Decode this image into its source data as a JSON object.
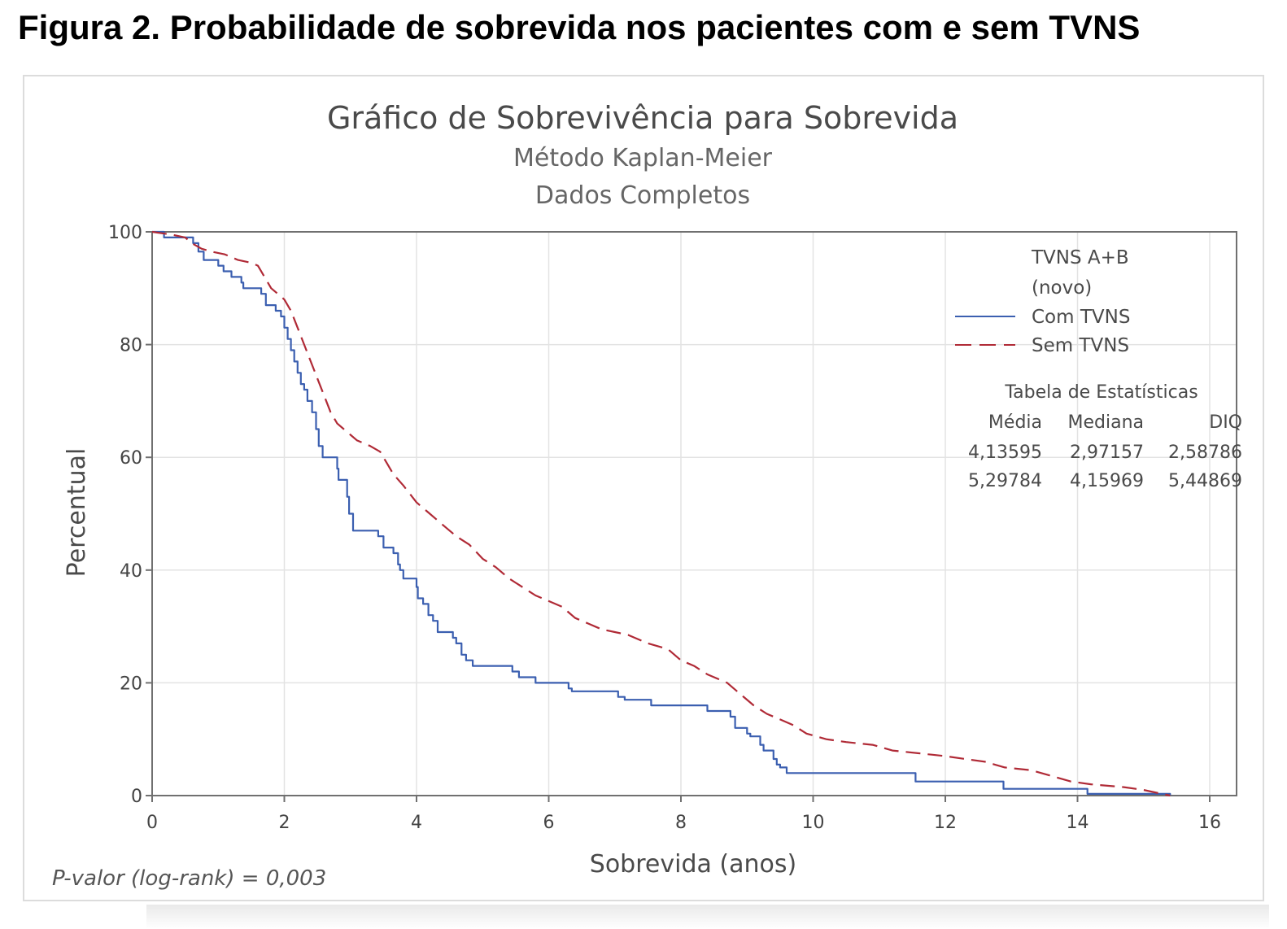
{
  "figure_title": "Figura 2. Probabilidade de sobrevida nos pacientes com e sem TVNS",
  "colors": {
    "com_tvns": "#3b5fb0",
    "sem_tvns": "#b02a36",
    "grid": "#e3e3e3",
    "axis": "#707070",
    "text": "#444444"
  },
  "chart_data": {
    "type": "line",
    "subtype": "kaplan-meier step",
    "title": "Gráfico de Sobrevivência para Sobrevida",
    "subtitle_1": "Método Kaplan-Meier",
    "subtitle_2": "Dados Completos",
    "xlabel": "Sobrevida (anos)",
    "ylabel": "Percentual",
    "xlim": [
      0,
      16.4
    ],
    "ylim": [
      0,
      100
    ],
    "x_ticks": [
      "0",
      "2",
      "4",
      "6",
      "8",
      "10",
      "12",
      "14",
      "16"
    ],
    "y_ticks": [
      "0",
      "20",
      "40",
      "60",
      "80",
      "100"
    ],
    "grid": true,
    "legend_position": "top-right",
    "legend_title_1": "TVNS A+B",
    "legend_title_2": "(novo)",
    "stats_table_title": "Tabela de Estatísticas",
    "stats_columns": [
      "Média",
      "Mediana",
      "DIQ"
    ],
    "stats_rows": [
      [
        "4,13595",
        "2,97157",
        "2,58786"
      ],
      [
        "5,29784",
        "4,15969",
        "5,44869"
      ]
    ],
    "annotation": "P-valor (log-rank) = 0,003",
    "series": [
      {
        "name": "Com TVNS",
        "style": "solid",
        "points": [
          [
            0,
            100
          ],
          [
            0.18,
            99
          ],
          [
            0.55,
            99
          ],
          [
            0.62,
            98
          ],
          [
            0.7,
            96.5
          ],
          [
            0.78,
            95
          ],
          [
            1.0,
            94
          ],
          [
            1.08,
            93
          ],
          [
            1.2,
            92
          ],
          [
            1.35,
            91
          ],
          [
            1.38,
            90
          ],
          [
            1.65,
            89
          ],
          [
            1.72,
            87
          ],
          [
            1.87,
            86
          ],
          [
            1.95,
            85
          ],
          [
            2.0,
            83
          ],
          [
            2.05,
            81
          ],
          [
            2.1,
            79
          ],
          [
            2.15,
            77
          ],
          [
            2.2,
            75
          ],
          [
            2.25,
            73
          ],
          [
            2.3,
            72
          ],
          [
            2.35,
            70
          ],
          [
            2.42,
            68
          ],
          [
            2.48,
            65
          ],
          [
            2.52,
            62
          ],
          [
            2.58,
            60
          ],
          [
            2.8,
            58
          ],
          [
            2.82,
            56
          ],
          [
            2.95,
            53
          ],
          [
            2.98,
            50
          ],
          [
            3.04,
            47
          ],
          [
            3.42,
            46
          ],
          [
            3.5,
            44
          ],
          [
            3.65,
            43
          ],
          [
            3.72,
            41
          ],
          [
            3.75,
            40
          ],
          [
            3.8,
            38.5
          ],
          [
            4.0,
            37
          ],
          [
            4.02,
            35
          ],
          [
            4.1,
            34
          ],
          [
            4.18,
            32
          ],
          [
            4.25,
            31
          ],
          [
            4.32,
            29
          ],
          [
            4.55,
            28
          ],
          [
            4.6,
            27
          ],
          [
            4.68,
            25
          ],
          [
            4.75,
            24
          ],
          [
            4.85,
            23
          ],
          [
            5.45,
            22
          ],
          [
            5.55,
            21
          ],
          [
            5.8,
            20
          ],
          [
            6.3,
            19
          ],
          [
            6.35,
            18.5
          ],
          [
            7.05,
            17.5
          ],
          [
            7.15,
            17
          ],
          [
            7.55,
            16
          ],
          [
            8.4,
            15
          ],
          [
            8.75,
            14
          ],
          [
            8.82,
            12
          ],
          [
            9.0,
            11
          ],
          [
            9.05,
            10.5
          ],
          [
            9.2,
            9
          ],
          [
            9.25,
            8
          ],
          [
            9.4,
            6.5
          ],
          [
            9.45,
            5.5
          ],
          [
            9.5,
            5
          ],
          [
            9.6,
            4
          ],
          [
            11.55,
            2.5
          ],
          [
            12.88,
            1.2
          ],
          [
            14.15,
            0.3
          ],
          [
            15.4,
            0
          ]
        ]
      },
      {
        "name": "Sem TVNS",
        "style": "dashed",
        "points": [
          [
            0,
            100
          ],
          [
            0.3,
            99.5
          ],
          [
            0.5,
            99
          ],
          [
            0.6,
            98
          ],
          [
            0.75,
            97
          ],
          [
            0.9,
            96.5
          ],
          [
            1.1,
            96
          ],
          [
            1.3,
            95
          ],
          [
            1.5,
            94.5
          ],
          [
            1.6,
            94
          ],
          [
            1.7,
            92
          ],
          [
            1.8,
            90
          ],
          [
            1.9,
            89
          ],
          [
            2.0,
            88
          ],
          [
            2.1,
            86
          ],
          [
            2.2,
            83
          ],
          [
            2.3,
            80
          ],
          [
            2.4,
            77
          ],
          [
            2.5,
            74
          ],
          [
            2.6,
            71
          ],
          [
            2.7,
            68
          ],
          [
            2.8,
            66
          ],
          [
            2.9,
            65
          ],
          [
            3.0,
            64
          ],
          [
            3.1,
            63
          ],
          [
            3.3,
            62
          ],
          [
            3.45,
            61
          ],
          [
            3.55,
            59
          ],
          [
            3.65,
            57
          ],
          [
            3.8,
            55
          ],
          [
            4.0,
            52
          ],
          [
            4.2,
            50
          ],
          [
            4.4,
            48
          ],
          [
            4.6,
            46
          ],
          [
            4.8,
            44.5
          ],
          [
            5.0,
            42
          ],
          [
            5.2,
            40.5
          ],
          [
            5.4,
            38.5
          ],
          [
            5.6,
            37
          ],
          [
            5.8,
            35.5
          ],
          [
            6.0,
            34.5
          ],
          [
            6.2,
            33.5
          ],
          [
            6.4,
            31.5
          ],
          [
            6.6,
            30.5
          ],
          [
            6.8,
            29.5
          ],
          [
            7.0,
            29
          ],
          [
            7.2,
            28.5
          ],
          [
            7.5,
            27
          ],
          [
            7.8,
            26
          ],
          [
            8.0,
            24
          ],
          [
            8.2,
            23
          ],
          [
            8.4,
            21.5
          ],
          [
            8.7,
            20
          ],
          [
            8.9,
            18
          ],
          [
            9.1,
            16
          ],
          [
            9.3,
            14.5
          ],
          [
            9.5,
            13.5
          ],
          [
            9.7,
            12.5
          ],
          [
            9.9,
            11
          ],
          [
            10.2,
            10
          ],
          [
            10.5,
            9.5
          ],
          [
            10.9,
            9
          ],
          [
            11.2,
            8
          ],
          [
            11.6,
            7.5
          ],
          [
            12.0,
            7
          ],
          [
            12.3,
            6.5
          ],
          [
            12.6,
            6
          ],
          [
            12.9,
            5
          ],
          [
            13.3,
            4.5
          ],
          [
            13.6,
            3.5
          ],
          [
            13.9,
            2.5
          ],
          [
            14.2,
            2
          ],
          [
            14.7,
            1.5
          ],
          [
            15.0,
            1
          ],
          [
            15.4,
            0
          ]
        ]
      }
    ]
  }
}
